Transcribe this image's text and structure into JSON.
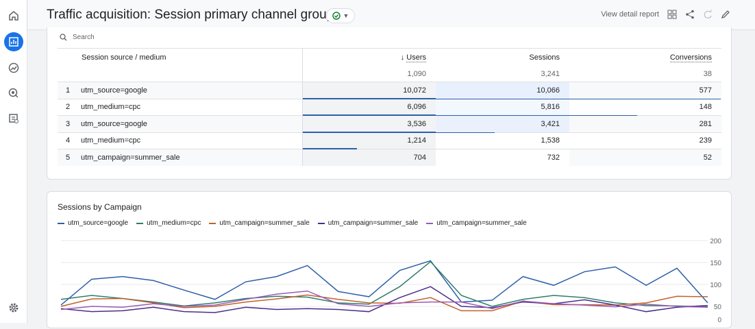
{
  "header": {
    "title": "Traffic acquisition: Session primary channel group",
    "view_report": "View detail report"
  },
  "sidebar": {
    "items": [
      "home-icon",
      "reports-icon",
      "explore-icon",
      "advertising-icon",
      "configure-icon"
    ],
    "settings": "gear-icon",
    "active": "reports-icon",
    "accent": "#1a73e8"
  },
  "search": {
    "placeholder": "Search"
  },
  "table": {
    "columns": [
      "Session source / medium",
      "Users",
      "Sessions",
      "Conversions"
    ],
    "sort_column": "Users",
    "totals": [
      "1,090",
      "3,241",
      "38"
    ],
    "rows": [
      {
        "n": "1",
        "dim": "utm_source=google",
        "users": "10,072",
        "sessions": "10,066",
        "conv": "577"
      },
      {
        "n": "2",
        "dim": "utm_medium=cpc",
        "users": "6,096",
        "sessions": "5,816",
        "conv": "148"
      },
      {
        "n": "3",
        "dim": "utm_source=google",
        "users": "3,536",
        "sessions": "3,421",
        "conv": "281"
      },
      {
        "n": "4",
        "dim": "utm_medium=cpc",
        "users": "1,214",
        "sessions": "1,538",
        "conv": "239"
      },
      {
        "n": "5",
        "dim": "utm_campaign=summer_sale",
        "users": "704",
        "sessions": "732",
        "conv": "52"
      }
    ]
  },
  "chart_data": {
    "type": "line",
    "title": "Sessions by Campaign",
    "ylim": [
      0,
      200
    ],
    "yticks": [
      "200",
      "150",
      "100",
      "50",
      "0"
    ],
    "grid": true,
    "legend": "top-left",
    "series": [
      {
        "name": "utm_source=google",
        "color": "#2c5fa8",
        "values": [
          53,
          112,
          118,
          109,
          87,
          66,
          106,
          118,
          143,
          84,
          72,
          132,
          154,
          60,
          64,
          118,
          98,
          129,
          140,
          98,
          137,
          58
        ]
      },
      {
        "name": "utm_medium=cpc",
        "color": "#2e7d6a",
        "values": [
          66,
          75,
          68,
          60,
          51,
          58,
          68,
          73,
          71,
          58,
          55,
          95,
          152,
          75,
          50,
          66,
          75,
          70,
          58,
          52,
          51,
          49
        ]
      },
      {
        "name": "utm_campaign=summer_sale",
        "color": "#c0612b",
        "values": [
          50,
          67,
          68,
          58,
          47,
          50,
          60,
          67,
          76,
          66,
          58,
          57,
          70,
          40,
          40,
          62,
          54,
          54,
          53,
          58,
          73,
          72
        ]
      },
      {
        "name": "utm_campaign=summer_sale",
        "color": "#4a2d8a",
        "values": [
          45,
          38,
          40,
          48,
          38,
          36,
          48,
          43,
          45,
          43,
          38,
          70,
          95,
          50,
          47,
          60,
          56,
          65,
          53,
          38,
          48,
          52
        ]
      },
      {
        "name": "utm_campaign=summer_sale",
        "color": "#9b59b6",
        "values": [
          43,
          50,
          48,
          56,
          50,
          53,
          66,
          78,
          85,
          56,
          50,
          58,
          60,
          60,
          45,
          62,
          56,
          53,
          49,
          55,
          50,
          48
        ]
      }
    ]
  }
}
